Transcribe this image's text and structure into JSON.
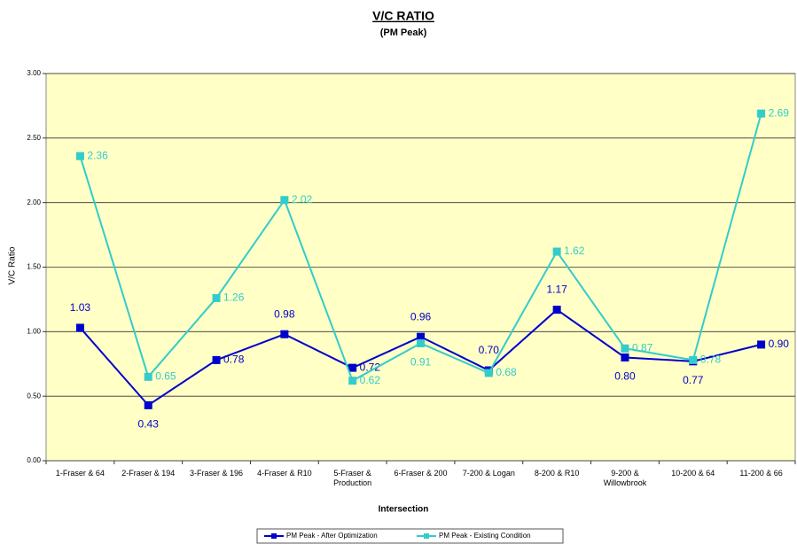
{
  "chart_data": {
    "type": "line",
    "title": "V/C RATIO",
    "subtitle": "(PM Peak)",
    "x_label": "Intersection",
    "y_label": "V/C Ratio",
    "categories": [
      "1-Fraser & 64",
      "2-Fraser & 194",
      "3-Fraser & 196",
      "4-Fraser & R10",
      "5-Fraser &\nProduction",
      "6-Fraser & 200",
      "7-200 & Logan",
      "8-200 & R10",
      "9-200 &\nWillowbrook",
      "10-200 & 64",
      "11-200 & 66"
    ],
    "series": [
      {
        "name": "PM Peak - After Optimization",
        "color": "#0000cc",
        "values": [
          1.03,
          0.43,
          0.78,
          0.98,
          0.72,
          0.96,
          0.7,
          1.17,
          0.8,
          0.77,
          0.9
        ],
        "value_labels": [
          "1.03",
          "0.43",
          "0.78",
          "0.98",
          "0.72",
          "0.96",
          "0.70",
          "1.17",
          "0.80",
          "0.77",
          "0.90"
        ]
      },
      {
        "name": "PM Peak - Existing Condition",
        "color": "#33cccc",
        "values": [
          2.36,
          0.65,
          1.26,
          2.02,
          0.62,
          0.91,
          0.68,
          1.62,
          0.87,
          0.78,
          2.69
        ],
        "value_labels": [
          "2.36",
          "0.65",
          "1.26",
          "2.02",
          "0.62",
          "0.91",
          "0.68",
          "1.62",
          "0.87",
          "0.78",
          "2.69"
        ]
      }
    ],
    "ylim": [
      0,
      3
    ],
    "yticks": [
      {
        "value": 0,
        "label": "0.00"
      },
      {
        "value": 0.5,
        "label": "0.50"
      },
      {
        "value": 1,
        "label": "1.00"
      },
      {
        "value": 1.5,
        "label": "1.50"
      },
      {
        "value": 2,
        "label": "2.00"
      },
      {
        "value": 2.5,
        "label": "2.50"
      },
      {
        "value": 3,
        "label": "3.00"
      }
    ],
    "grid": true,
    "legend": "bottom"
  }
}
